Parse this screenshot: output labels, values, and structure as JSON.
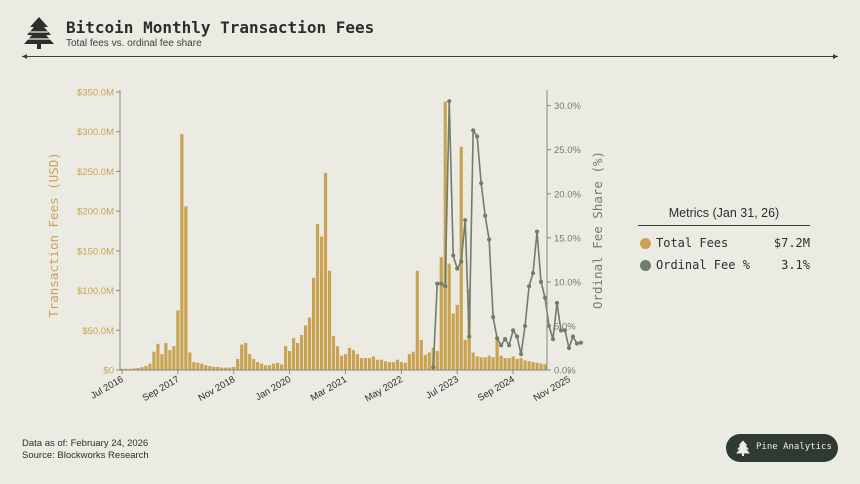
{
  "header": {
    "title": "Bitcoin Monthly Transaction Fees",
    "subtitle": "Total fees vs. ordinal fee share",
    "logo_icon": "pine-tree-icon"
  },
  "metrics": {
    "title": "Metrics (Jan 31, 26)",
    "items": [
      {
        "label": "Total Fees",
        "value": "$7.2M",
        "color": "#c9a352"
      },
      {
        "label": "Ordinal Fee %",
        "value": "3.1%",
        "color": "#6f7d6c"
      }
    ]
  },
  "footer": {
    "data_as_of": "Data as of: February 24, 2026",
    "source": "Source: Blockworks Research"
  },
  "badge": {
    "label": "Pine Analytics",
    "icon": "pine-tree-icon"
  },
  "colors": {
    "bars": "#c9a352",
    "line": "#6f7d6c",
    "ink": "#2b2f2a",
    "background": "#ecebe3"
  },
  "chart_data": {
    "type": "bar",
    "title": "Bitcoin Monthly Transaction Fees",
    "subtitle": "Total fees vs. ordinal fee share",
    "start_month": "2016-07",
    "x_tick_labels": [
      "Jul 2016",
      "Sep 2017",
      "Nov 2018",
      "Jan 2020",
      "Mar 2021",
      "May 2022",
      "Jul 2023",
      "Sep 2024",
      "Nov 2025"
    ],
    "x_tick_months": [
      "2016-07",
      "2017-09",
      "2018-11",
      "2020-01",
      "2021-03",
      "2022-05",
      "2023-07",
      "2024-09",
      "2025-11"
    ],
    "ylabel": "Transaction Fees (USD)",
    "ylim": [
      0,
      350
    ],
    "y_ticks": [
      0,
      50,
      100,
      150,
      200,
      250,
      300,
      350
    ],
    "y_tick_labels": [
      "$0",
      "$50.0M",
      "$100.0M",
      "$150.0M",
      "$200.0M",
      "$250.0M",
      "$300.0M",
      "$350.0M"
    ],
    "y2label": "Ordinal Fee Share (%)",
    "y2lim": [
      0,
      32
    ],
    "y2_ticks": [
      0,
      5,
      10,
      15,
      20,
      25,
      30
    ],
    "y2_tick_labels": [
      "0.0%",
      "5.0%",
      "10.0%",
      "15.0%",
      "20.0%",
      "25.0%",
      "30.0%"
    ],
    "grid": false,
    "series": [
      {
        "name": "Total Fees",
        "type": "bar",
        "unit": "USD millions",
        "values": [
          1.5,
          1.5,
          1.5,
          2,
          2.5,
          3.5,
          5,
          8,
          23,
          33,
          20,
          34,
          25,
          30,
          75,
          297,
          206,
          22,
          10,
          9,
          8,
          6,
          5,
          4,
          4,
          3,
          3,
          3,
          4,
          14,
          32,
          34,
          20,
          14,
          10,
          8,
          6,
          6,
          8,
          9,
          7,
          30,
          24,
          40,
          34,
          44,
          56,
          66,
          116,
          184,
          168,
          248,
          125,
          43,
          30,
          18,
          20,
          28,
          25,
          20,
          15,
          15,
          15,
          17,
          13,
          13,
          11,
          10,
          10,
          13,
          10,
          9,
          20,
          23,
          125,
          38,
          19,
          22,
          28,
          24,
          142,
          338,
          134,
          71,
          82,
          281,
          38,
          102,
          22,
          17,
          16,
          16,
          18,
          16,
          40,
          18,
          15,
          15,
          17,
          14,
          15,
          12,
          11,
          10,
          9,
          8,
          7.2
        ]
      },
      {
        "name": "Ordinal Fee %",
        "type": "line",
        "unit": "percent",
        "start_month": "2023-01",
        "values": [
          0.3,
          9.8,
          9.8,
          9.5,
          30.5,
          13,
          11.5,
          12.3,
          17,
          3.8,
          27.2,
          26.5,
          21.2,
          17.5,
          14.8,
          6,
          3.6,
          2.8,
          3.5,
          2.8,
          4.5,
          3.8,
          1.8,
          5,
          9.5,
          11,
          15.7,
          10,
          8.2,
          5,
          3.5,
          7.6,
          4.5,
          4.5,
          2.5,
          3.8,
          3,
          3.1
        ]
      }
    ]
  }
}
